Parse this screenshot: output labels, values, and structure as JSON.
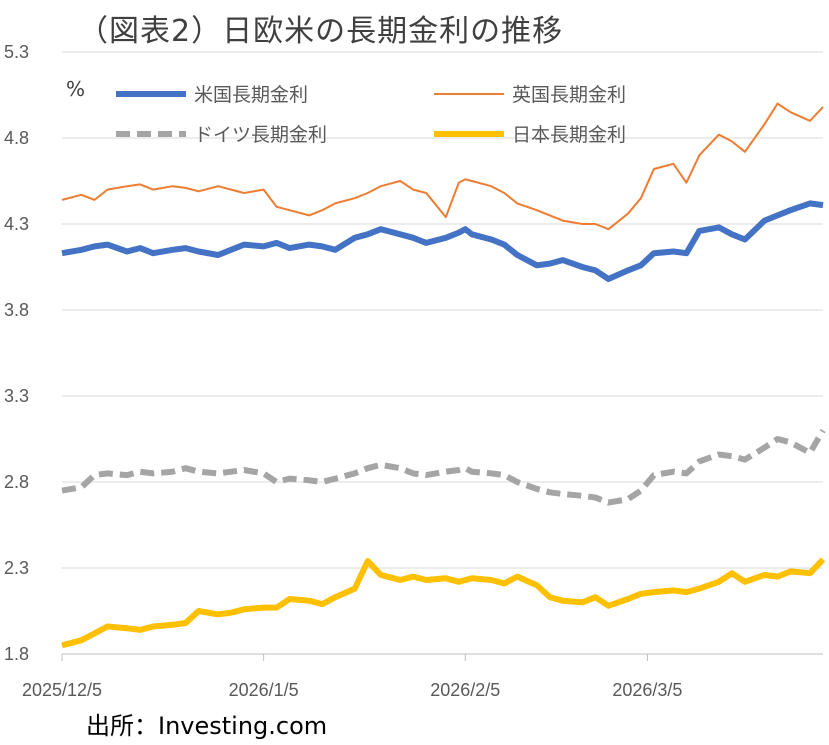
{
  "title": "（図表2）日欧米の長期金利の推移",
  "source": "出所：Investing.com",
  "chart_data": {
    "type": "line",
    "unit": "%",
    "ylim": [
      1.8,
      5.3
    ],
    "yticks": [
      "5.3",
      "4.8",
      "4.3",
      "3.8",
      "3.3",
      "2.8",
      "2.3",
      "1.8"
    ],
    "xticks": [
      "2025/12/5",
      "2026/1/5",
      "2026/2/5",
      "2026/3/5"
    ],
    "grid": true,
    "legend": "top",
    "series": [
      {
        "name": "米国長期金利",
        "color": "#4472c4",
        "style": "solid-thick",
        "x": [
          "2025-12-05",
          "2025-12-08",
          "2025-12-10",
          "2025-12-12",
          "2025-12-15",
          "2025-12-17",
          "2025-12-19",
          "2025-12-22",
          "2025-12-24",
          "2025-12-26",
          "2025-12-29",
          "2025-12-31",
          "2026-01-02",
          "2026-01-05",
          "2026-01-07",
          "2026-01-09",
          "2026-01-12",
          "2026-01-14",
          "2026-01-16",
          "2026-01-19",
          "2026-01-21",
          "2026-01-23",
          "2026-01-26",
          "2026-01-28",
          "2026-01-30",
          "2026-02-02",
          "2026-02-04",
          "2026-02-05",
          "2026-02-06",
          "2026-02-09",
          "2026-02-11",
          "2026-02-13",
          "2026-02-16",
          "2026-02-18",
          "2026-02-20",
          "2026-02-23",
          "2026-02-25",
          "2026-02-27",
          "2026-03-02",
          "2026-03-04",
          "2026-03-06",
          "2026-03-09",
          "2026-03-11",
          "2026-03-13",
          "2026-03-16",
          "2026-03-18",
          "2026-03-20",
          "2026-03-23",
          "2026-03-25",
          "2026-03-27",
          "2026-03-30",
          "2026-04-01"
        ],
        "y": [
          4.13,
          4.15,
          4.17,
          4.18,
          4.14,
          4.16,
          4.13,
          4.15,
          4.16,
          4.14,
          4.12,
          4.15,
          4.18,
          4.17,
          4.19,
          4.16,
          4.18,
          4.17,
          4.15,
          4.22,
          4.24,
          4.27,
          4.24,
          4.22,
          4.19,
          4.22,
          4.25,
          4.27,
          4.24,
          4.21,
          4.18,
          4.12,
          4.06,
          4.07,
          4.09,
          4.05,
          4.03,
          3.98,
          4.03,
          4.06,
          4.13,
          4.14,
          4.13,
          4.26,
          4.28,
          4.24,
          4.21,
          4.32,
          4.35,
          4.38,
          4.42,
          4.41
        ]
      },
      {
        "name": "英国長期金利",
        "color": "#ed7d31",
        "style": "solid-thin",
        "x": [
          "2025-12-05",
          "2025-12-08",
          "2025-12-10",
          "2025-12-12",
          "2025-12-15",
          "2025-12-17",
          "2025-12-19",
          "2025-12-22",
          "2025-12-24",
          "2025-12-26",
          "2025-12-29",
          "2025-12-31",
          "2026-01-02",
          "2026-01-05",
          "2026-01-07",
          "2026-01-09",
          "2026-01-12",
          "2026-01-14",
          "2026-01-16",
          "2026-01-19",
          "2026-01-21",
          "2026-01-23",
          "2026-01-26",
          "2026-01-28",
          "2026-01-30",
          "2026-02-02",
          "2026-02-04",
          "2026-02-05",
          "2026-02-06",
          "2026-02-09",
          "2026-02-11",
          "2026-02-13",
          "2026-02-16",
          "2026-02-18",
          "2026-02-20",
          "2026-02-23",
          "2026-02-25",
          "2026-02-27",
          "2026-03-02",
          "2026-03-04",
          "2026-03-06",
          "2026-03-09",
          "2026-03-11",
          "2026-03-13",
          "2026-03-16",
          "2026-03-18",
          "2026-03-20",
          "2026-03-23",
          "2026-03-25",
          "2026-03-27",
          "2026-03-30",
          "2026-04-01"
        ],
        "y": [
          4.44,
          4.47,
          4.44,
          4.5,
          4.52,
          4.53,
          4.5,
          4.52,
          4.51,
          4.49,
          4.52,
          4.5,
          4.48,
          4.5,
          4.4,
          4.38,
          4.35,
          4.38,
          4.42,
          4.45,
          4.48,
          4.52,
          4.55,
          4.5,
          4.48,
          4.34,
          4.54,
          4.56,
          4.55,
          4.52,
          4.48,
          4.42,
          4.38,
          4.35,
          4.32,
          4.3,
          4.3,
          4.27,
          4.36,
          4.45,
          4.62,
          4.65,
          4.54,
          4.7,
          4.82,
          4.78,
          4.72,
          4.88,
          5.0,
          4.95,
          4.9,
          4.98
        ]
      },
      {
        "name": "ドイツ長期金利",
        "color": "#a5a5a5",
        "style": "dashed",
        "x": [
          "2025-12-05",
          "2025-12-08",
          "2025-12-10",
          "2025-12-12",
          "2025-12-15",
          "2025-12-17",
          "2025-12-19",
          "2025-12-22",
          "2025-12-24",
          "2025-12-26",
          "2025-12-29",
          "2025-12-31",
          "2026-01-02",
          "2026-01-05",
          "2026-01-07",
          "2026-01-09",
          "2026-01-12",
          "2026-01-14",
          "2026-01-16",
          "2026-01-19",
          "2026-01-21",
          "2026-01-23",
          "2026-01-26",
          "2026-01-28",
          "2026-01-30",
          "2026-02-02",
          "2026-02-04",
          "2026-02-05",
          "2026-02-06",
          "2026-02-09",
          "2026-02-11",
          "2026-02-13",
          "2026-02-16",
          "2026-02-18",
          "2026-02-20",
          "2026-02-23",
          "2026-02-25",
          "2026-02-27",
          "2026-03-02",
          "2026-03-04",
          "2026-03-06",
          "2026-03-09",
          "2026-03-11",
          "2026-03-13",
          "2026-03-16",
          "2026-03-18",
          "2026-03-20",
          "2026-03-23",
          "2026-03-25",
          "2026-03-27",
          "2026-03-30",
          "2026-04-01"
        ],
        "y": [
          2.75,
          2.77,
          2.84,
          2.85,
          2.84,
          2.86,
          2.85,
          2.86,
          2.88,
          2.86,
          2.85,
          2.86,
          2.87,
          2.85,
          2.8,
          2.82,
          2.81,
          2.8,
          2.82,
          2.85,
          2.88,
          2.9,
          2.88,
          2.85,
          2.84,
          2.86,
          2.87,
          2.88,
          2.86,
          2.85,
          2.84,
          2.8,
          2.76,
          2.74,
          2.73,
          2.72,
          2.71,
          2.68,
          2.7,
          2.75,
          2.84,
          2.86,
          2.85,
          2.92,
          2.96,
          2.95,
          2.93,
          3.0,
          3.05,
          3.03,
          2.97,
          3.1
        ]
      },
      {
        "name": "日本長期金利",
        "color": "#ffc000",
        "style": "solid-thick",
        "x": [
          "2025-12-05",
          "2025-12-08",
          "2025-12-10",
          "2025-12-12",
          "2025-12-15",
          "2025-12-17",
          "2025-12-19",
          "2025-12-22",
          "2025-12-24",
          "2025-12-26",
          "2025-12-29",
          "2025-12-31",
          "2026-01-02",
          "2026-01-05",
          "2026-01-07",
          "2026-01-09",
          "2026-01-12",
          "2026-01-14",
          "2026-01-16",
          "2026-01-19",
          "2026-01-21",
          "2026-01-23",
          "2026-01-26",
          "2026-01-28",
          "2026-01-30",
          "2026-02-02",
          "2026-02-04",
          "2026-02-05",
          "2026-02-06",
          "2026-02-09",
          "2026-02-11",
          "2026-02-13",
          "2026-02-16",
          "2026-02-18",
          "2026-02-20",
          "2026-02-23",
          "2026-02-25",
          "2026-02-27",
          "2026-03-02",
          "2026-03-04",
          "2026-03-06",
          "2026-03-09",
          "2026-03-11",
          "2026-03-13",
          "2026-03-16",
          "2026-03-18",
          "2026-03-20",
          "2026-03-23",
          "2026-03-25",
          "2026-03-27",
          "2026-03-30",
          "2026-04-01"
        ],
        "y": [
          1.85,
          1.88,
          1.92,
          1.96,
          1.95,
          1.94,
          1.96,
          1.97,
          1.98,
          2.05,
          2.03,
          2.04,
          2.06,
          2.07,
          2.07,
          2.12,
          2.11,
          2.09,
          2.13,
          2.18,
          2.34,
          2.26,
          2.23,
          2.25,
          2.23,
          2.24,
          2.22,
          2.23,
          2.24,
          2.23,
          2.21,
          2.25,
          2.2,
          2.13,
          2.11,
          2.1,
          2.13,
          2.08,
          2.12,
          2.15,
          2.16,
          2.17,
          2.16,
          2.18,
          2.22,
          2.27,
          2.22,
          2.26,
          2.25,
          2.28,
          2.27,
          2.35
        ]
      }
    ]
  }
}
